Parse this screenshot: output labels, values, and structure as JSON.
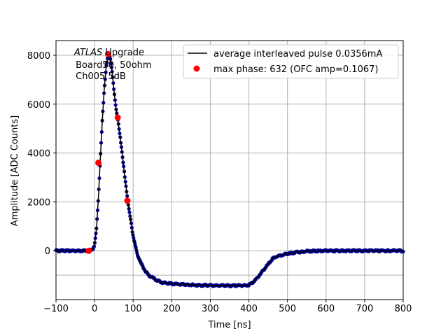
{
  "chart_data": {
    "type": "scatter",
    "xlabel": "Time [ns]",
    "ylabel": "Amplitude [ADC Counts]",
    "xlim": [
      -100,
      800
    ],
    "ylim": [
      -2000,
      8600
    ],
    "xticks": [
      -100,
      0,
      100,
      200,
      300,
      400,
      500,
      600,
      700,
      800
    ],
    "xtick_labels": [
      "−100",
      "0",
      "100",
      "200",
      "300",
      "400",
      "500",
      "600",
      "700",
      "800"
    ],
    "yticks": [
      0,
      2000,
      4000,
      6000,
      8000
    ],
    "ytick_labels": [
      "0",
      "2000",
      "4000",
      "6000",
      "8000"
    ],
    "yticks_minor_grid": [
      -1000
    ],
    "grid": true,
    "legend_position": "top-right",
    "annotation": {
      "italic": "ATLAS",
      "line1_rest": " Upgrade",
      "line2": " Board50, 50ohm",
      "line3": " Ch005 5dB"
    },
    "series": [
      {
        "name": "average interleaved pulse 0.0356mA",
        "style": "line",
        "color": "#000000",
        "marker_color": "#00008b",
        "points": [
          [
            -100,
            0
          ],
          [
            -60,
            0
          ],
          [
            -30,
            0
          ],
          [
            -15,
            0
          ],
          [
            -5,
            50
          ],
          [
            0,
            250
          ],
          [
            5,
            900
          ],
          [
            10,
            2200
          ],
          [
            15,
            3800
          ],
          [
            20,
            5300
          ],
          [
            25,
            6600
          ],
          [
            30,
            7500
          ],
          [
            35,
            8000
          ],
          [
            40,
            7950
          ],
          [
            45,
            7400
          ],
          [
            50,
            6600
          ],
          [
            55,
            5900
          ],
          [
            60,
            5400
          ],
          [
            65,
            4800
          ],
          [
            70,
            4200
          ],
          [
            75,
            3500
          ],
          [
            80,
            2800
          ],
          [
            85,
            2200
          ],
          [
            90,
            1600
          ],
          [
            95,
            1100
          ],
          [
            100,
            600
          ],
          [
            110,
            -100
          ],
          [
            120,
            -500
          ],
          [
            130,
            -800
          ],
          [
            140,
            -1000
          ],
          [
            150,
            -1100
          ],
          [
            160,
            -1200
          ],
          [
            175,
            -1300
          ],
          [
            200,
            -1350
          ],
          [
            250,
            -1400
          ],
          [
            300,
            -1420
          ],
          [
            350,
            -1430
          ],
          [
            390,
            -1420
          ],
          [
            400,
            -1400
          ],
          [
            410,
            -1300
          ],
          [
            420,
            -1150
          ],
          [
            430,
            -950
          ],
          [
            440,
            -750
          ],
          [
            450,
            -550
          ],
          [
            460,
            -350
          ],
          [
            470,
            -250
          ],
          [
            480,
            -200
          ],
          [
            500,
            -120
          ],
          [
            525,
            -60
          ],
          [
            550,
            -20
          ],
          [
            600,
            0
          ],
          [
            700,
            0
          ],
          [
            800,
            0
          ]
        ]
      },
      {
        "name": "max phase: 632 (OFC amp=0.1067)",
        "style": "markers",
        "color": "#ff0000",
        "points": [
          [
            -15,
            0
          ],
          [
            10,
            3600
          ],
          [
            35,
            8050
          ],
          [
            60,
            5450
          ],
          [
            85,
            2050
          ]
        ]
      }
    ]
  }
}
